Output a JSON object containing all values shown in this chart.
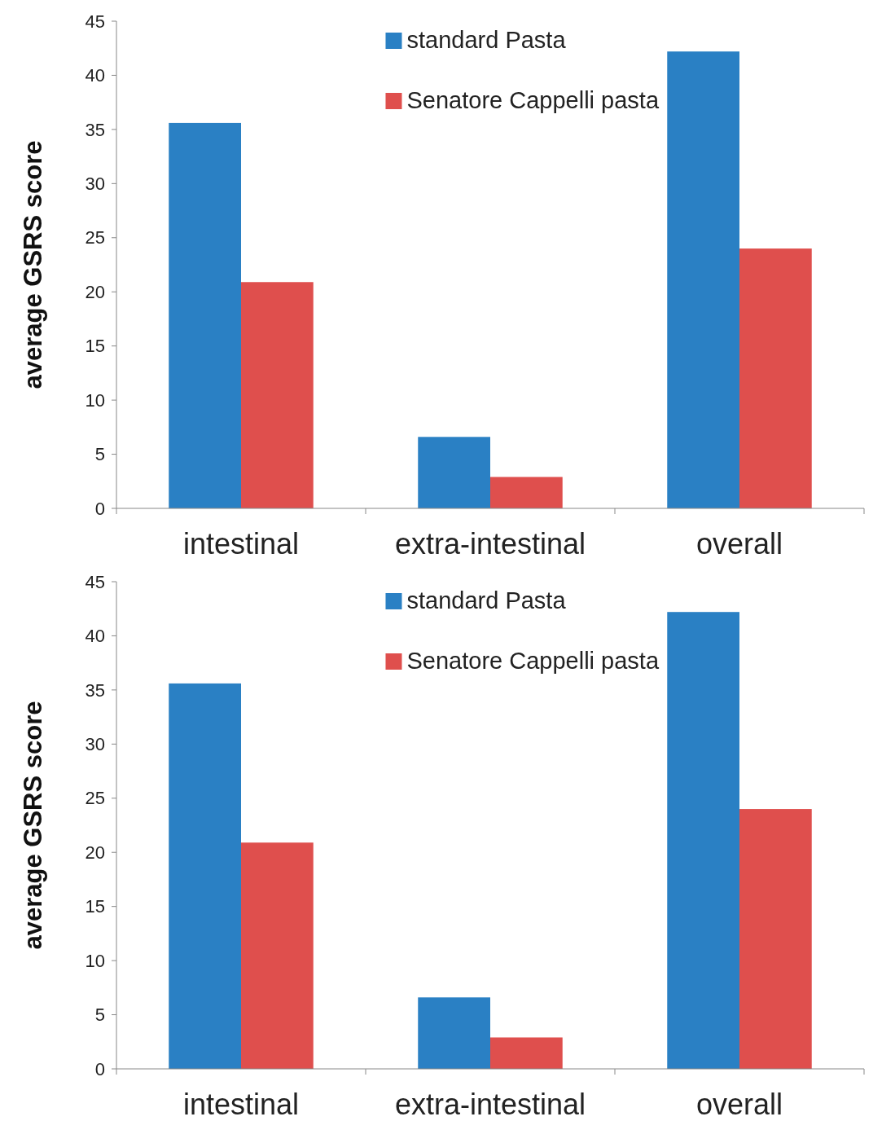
{
  "chart_data": [
    {
      "type": "bar",
      "ylabel": "average GSRS score",
      "categories": [
        "intestinal",
        "extra-intestinal",
        "overall"
      ],
      "series": [
        {
          "name": "standard Pasta",
          "color": "#2a80c4",
          "values": [
            35.6,
            6.6,
            42.2
          ]
        },
        {
          "name": "Senatore Cappelli pasta",
          "color": "#df4f4d",
          "values": [
            20.9,
            2.9,
            24
          ]
        }
      ],
      "ylim": [
        0,
        45
      ],
      "yticks": [
        0,
        5,
        10,
        15,
        20,
        25,
        30,
        35,
        40,
        45
      ],
      "grid": false,
      "legend": "top"
    },
    {
      "type": "bar",
      "ylabel": "average GSRS score",
      "categories": [
        "intestinal",
        "extra-intestinal",
        "overall"
      ],
      "series": [
        {
          "name": "standard Pasta",
          "color": "#2a80c4",
          "values": [
            35.6,
            6.6,
            42.2
          ]
        },
        {
          "name": "Senatore Cappelli pasta",
          "color": "#df4f4d",
          "values": [
            20.9,
            2.9,
            24
          ]
        }
      ],
      "ylim": [
        0,
        45
      ],
      "yticks": [
        0,
        5,
        10,
        15,
        20,
        25,
        30,
        35,
        40,
        45
      ],
      "grid": false,
      "legend": "top"
    }
  ]
}
